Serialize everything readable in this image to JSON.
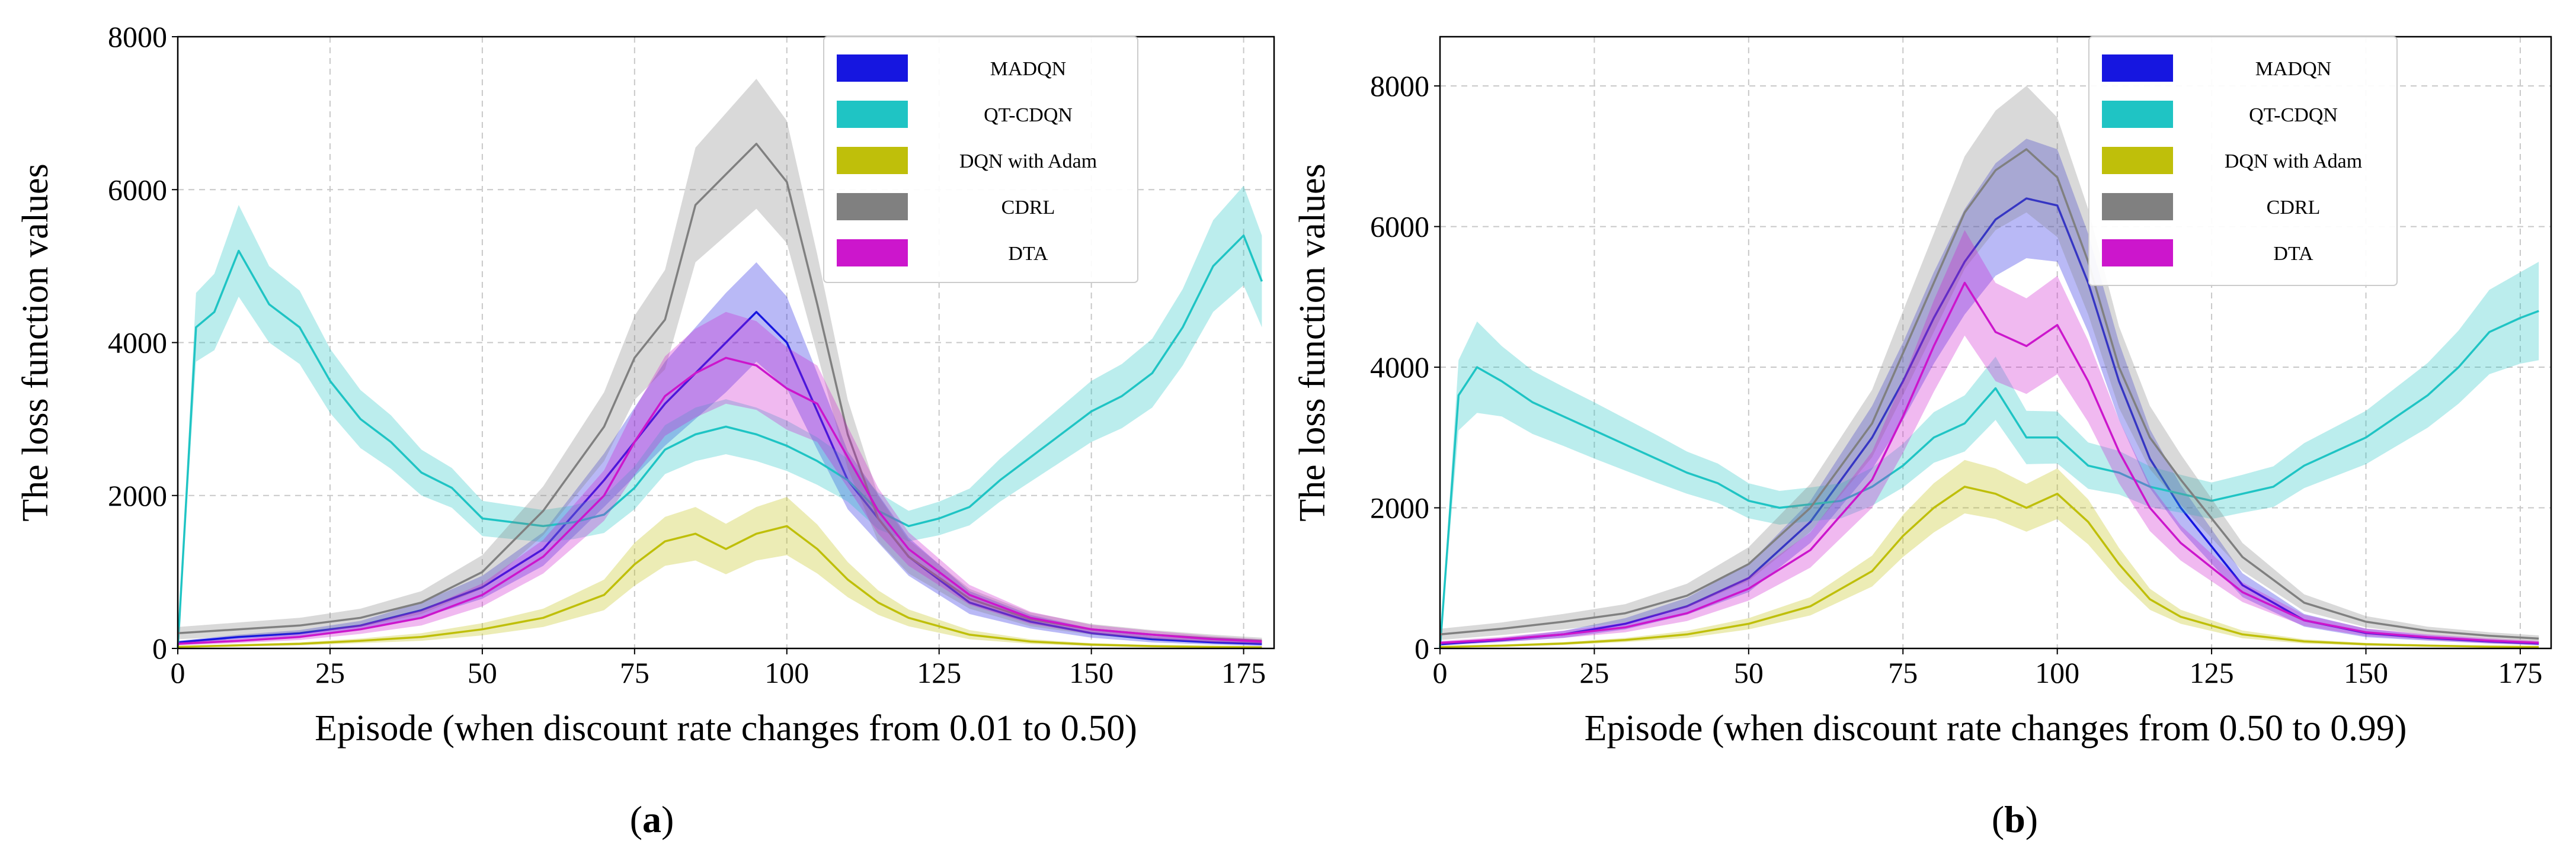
{
  "colors": {
    "MADQN": "#1616e0",
    "QT-CDQN": "#1fc4c4",
    "DQN with Adam": "#bfbf0a",
    "CDRL": "#808080",
    "DTA": "#cc16cc"
  },
  "chart_data": [
    {
      "type": "line",
      "panel": "a",
      "caption_letter": "a",
      "xlabel": "Episode (when discount rate changes from 0.01 to 0.50)",
      "ylabel": "The loss function values",
      "xlim": [
        0,
        180
      ],
      "ylim": [
        0,
        8000
      ],
      "xticks": [
        0,
        25,
        50,
        75,
        100,
        125,
        150,
        175
      ],
      "yticks": [
        0,
        2000,
        4000,
        6000,
        8000
      ],
      "grid": true,
      "legend_position": "top-right",
      "series": [
        {
          "name": "MADQN",
          "x": [
            0,
            10,
            20,
            30,
            40,
            50,
            60,
            70,
            80,
            90,
            95,
            100,
            105,
            110,
            120,
            130,
            140,
            150,
            160,
            170,
            178
          ],
          "y": [
            80,
            150,
            200,
            300,
            500,
            800,
            1300,
            2200,
            3200,
            4000,
            4400,
            4000,
            3100,
            2200,
            1200,
            600,
            350,
            200,
            120,
            80,
            60
          ],
          "band": [
            20,
            30,
            40,
            60,
            100,
            150,
            220,
            350,
            550,
            650,
            650,
            600,
            500,
            380,
            250,
            150,
            90,
            60,
            40,
            30,
            30
          ]
        },
        {
          "name": "QT-CDQN",
          "x": [
            0,
            3,
            6,
            10,
            15,
            20,
            25,
            30,
            35,
            40,
            45,
            50,
            55,
            60,
            65,
            70,
            75,
            80,
            85,
            90,
            95,
            100,
            105,
            110,
            115,
            120,
            125,
            130,
            135,
            140,
            145,
            150,
            155,
            160,
            165,
            170,
            175,
            178
          ],
          "y": [
            0,
            4200,
            4400,
            5200,
            4500,
            4200,
            3500,
            3000,
            2700,
            2300,
            2100,
            1700,
            1650,
            1600,
            1650,
            1750,
            2100,
            2600,
            2800,
            2900,
            2800,
            2650,
            2450,
            2200,
            1800,
            1600,
            1700,
            1850,
            2200,
            2500,
            2800,
            3100,
            3300,
            3600,
            4200,
            5000,
            5400,
            4800
          ],
          "band": [
            0,
            450,
            500,
            600,
            500,
            480,
            420,
            380,
            350,
            300,
            260,
            230,
            220,
            210,
            220,
            240,
            280,
            320,
            350,
            360,
            350,
            330,
            310,
            280,
            240,
            200,
            220,
            240,
            280,
            320,
            360,
            400,
            420,
            450,
            500,
            600,
            650,
            600
          ]
        },
        {
          "name": "DQN with Adam",
          "x": [
            0,
            10,
            20,
            30,
            40,
            50,
            60,
            70,
            75,
            80,
            85,
            90,
            95,
            100,
            105,
            110,
            115,
            120,
            130,
            140,
            150,
            160,
            170,
            178
          ],
          "y": [
            20,
            40,
            60,
            100,
            150,
            250,
            400,
            700,
            1100,
            1400,
            1500,
            1300,
            1500,
            1600,
            1300,
            900,
            600,
            400,
            180,
            90,
            50,
            30,
            20,
            15
          ],
          "band": [
            10,
            15,
            20,
            30,
            50,
            80,
            120,
            200,
            280,
            320,
            350,
            330,
            350,
            380,
            320,
            230,
            160,
            110,
            60,
            30,
            20,
            15,
            10,
            10
          ]
        },
        {
          "name": "CDRL",
          "x": [
            0,
            10,
            20,
            30,
            40,
            50,
            60,
            70,
            75,
            80,
            85,
            90,
            95,
            100,
            105,
            110,
            115,
            120,
            130,
            140,
            150,
            160,
            170,
            178
          ],
          "y": [
            200,
            250,
            300,
            400,
            600,
            1000,
            1800,
            2900,
            3800,
            4300,
            5800,
            6200,
            6600,
            6100,
            4500,
            2800,
            1700,
            1200,
            650,
            380,
            250,
            180,
            130,
            100
          ],
          "band": [
            80,
            90,
            100,
            120,
            150,
            220,
            320,
            450,
            550,
            650,
            750,
            800,
            850,
            800,
            650,
            450,
            300,
            220,
            130,
            90,
            70,
            60,
            50,
            40
          ]
        },
        {
          "name": "DTA",
          "x": [
            0,
            10,
            20,
            30,
            40,
            50,
            60,
            70,
            75,
            80,
            85,
            90,
            95,
            100,
            105,
            110,
            115,
            120,
            130,
            140,
            150,
            160,
            170,
            178
          ],
          "y": [
            60,
            100,
            150,
            250,
            400,
            700,
            1200,
            2000,
            2700,
            3300,
            3600,
            3800,
            3700,
            3400,
            3200,
            2500,
            1800,
            1300,
            700,
            400,
            250,
            180,
            120,
            90
          ],
          "band": [
            20,
            30,
            40,
            60,
            100,
            150,
            220,
            330,
            430,
            520,
            580,
            600,
            580,
            540,
            500,
            400,
            300,
            220,
            130,
            80,
            60,
            50,
            40,
            30
          ]
        }
      ]
    },
    {
      "type": "line",
      "panel": "b",
      "caption_letter": "b",
      "xlabel": "Episode (when discount rate changes from 0.50 to 0.99)",
      "ylabel": "The loss function values",
      "xlim": [
        0,
        180
      ],
      "ylim": [
        0,
        8700
      ],
      "xticks": [
        0,
        25,
        50,
        75,
        100,
        125,
        150,
        175
      ],
      "yticks": [
        0,
        2000,
        4000,
        6000,
        8000
      ],
      "grid": true,
      "legend_position": "top-right",
      "series": [
        {
          "name": "MADQN",
          "x": [
            0,
            10,
            20,
            30,
            40,
            50,
            60,
            70,
            75,
            80,
            85,
            90,
            95,
            100,
            105,
            110,
            115,
            120,
            130,
            140,
            150,
            160,
            170,
            178
          ],
          "y": [
            60,
            120,
            200,
            350,
            600,
            1000,
            1800,
            3000,
            3800,
            4700,
            5500,
            6100,
            6400,
            6300,
            5200,
            3800,
            2700,
            2000,
            900,
            400,
            220,
            150,
            100,
            70
          ],
          "band": [
            20,
            30,
            50,
            80,
            120,
            200,
            300,
            450,
            550,
            650,
            750,
            800,
            850,
            800,
            700,
            550,
            420,
            320,
            170,
            90,
            60,
            40,
            30,
            25
          ]
        },
        {
          "name": "QT-CDQN",
          "x": [
            0,
            3,
            6,
            10,
            15,
            20,
            25,
            30,
            35,
            40,
            45,
            50,
            55,
            60,
            65,
            70,
            75,
            80,
            85,
            90,
            95,
            100,
            105,
            110,
            115,
            120,
            125,
            130,
            135,
            140,
            145,
            150,
            155,
            160,
            165,
            170,
            175,
            178
          ],
          "y": [
            0,
            3600,
            4000,
            3800,
            3500,
            3300,
            3100,
            2900,
            2700,
            2500,
            2350,
            2100,
            2000,
            2050,
            2100,
            2300,
            2600,
            3000,
            3200,
            3700,
            3000,
            3000,
            2600,
            2500,
            2300,
            2200,
            2100,
            2200,
            2300,
            2600,
            2800,
            3000,
            3300,
            3600,
            4000,
            4500,
            4700,
            4800
          ],
          "band": [
            0,
            500,
            650,
            500,
            450,
            420,
            400,
            370,
            340,
            300,
            280,
            250,
            240,
            240,
            250,
            270,
            310,
            360,
            400,
            450,
            380,
            370,
            330,
            310,
            290,
            270,
            260,
            270,
            290,
            320,
            350,
            380,
            420,
            460,
            520,
            600,
            650,
            700
          ]
        },
        {
          "name": "DQN with Adam",
          "x": [
            0,
            10,
            20,
            30,
            40,
            50,
            60,
            70,
            75,
            80,
            85,
            90,
            95,
            100,
            105,
            110,
            115,
            120,
            130,
            140,
            150,
            160,
            170,
            178
          ],
          "y": [
            20,
            40,
            70,
            120,
            200,
            350,
            600,
            1100,
            1600,
            2000,
            2300,
            2200,
            2000,
            2200,
            1800,
            1200,
            700,
            450,
            200,
            100,
            60,
            40,
            25,
            20
          ],
          "band": [
            10,
            15,
            20,
            30,
            50,
            80,
            130,
            220,
            300,
            350,
            380,
            360,
            340,
            360,
            320,
            230,
            150,
            100,
            55,
            30,
            20,
            15,
            10,
            10
          ]
        },
        {
          "name": "CDRL",
          "x": [
            0,
            10,
            20,
            30,
            40,
            50,
            60,
            70,
            75,
            80,
            85,
            90,
            95,
            100,
            105,
            110,
            115,
            120,
            130,
            140,
            150,
            160,
            170,
            178
          ],
          "y": [
            200,
            280,
            380,
            500,
            750,
            1200,
            2000,
            3200,
            4200,
            5200,
            6200,
            6800,
            7100,
            6700,
            5500,
            4000,
            3000,
            2400,
            1300,
            650,
            380,
            250,
            180,
            140
          ],
          "band": [
            80,
            90,
            110,
            130,
            170,
            240,
            340,
            480,
            600,
            700,
            800,
            850,
            900,
            850,
            750,
            580,
            450,
            360,
            200,
            120,
            80,
            60,
            50,
            45
          ]
        },
        {
          "name": "DTA",
          "x": [
            0,
            10,
            20,
            30,
            40,
            50,
            60,
            70,
            75,
            80,
            85,
            90,
            95,
            100,
            105,
            110,
            115,
            120,
            130,
            140,
            150,
            160,
            170,
            178
          ],
          "y": [
            80,
            130,
            200,
            300,
            500,
            850,
            1400,
            2400,
            3300,
            4300,
            5200,
            4500,
            4300,
            4600,
            3800,
            2800,
            2000,
            1500,
            800,
            400,
            230,
            160,
            110,
            80
          ],
          "band": [
            25,
            35,
            50,
            70,
            110,
            170,
            250,
            400,
            520,
            650,
            750,
            700,
            680,
            700,
            580,
            450,
            330,
            250,
            140,
            80,
            55,
            40,
            35,
            30
          ]
        }
      ]
    }
  ]
}
